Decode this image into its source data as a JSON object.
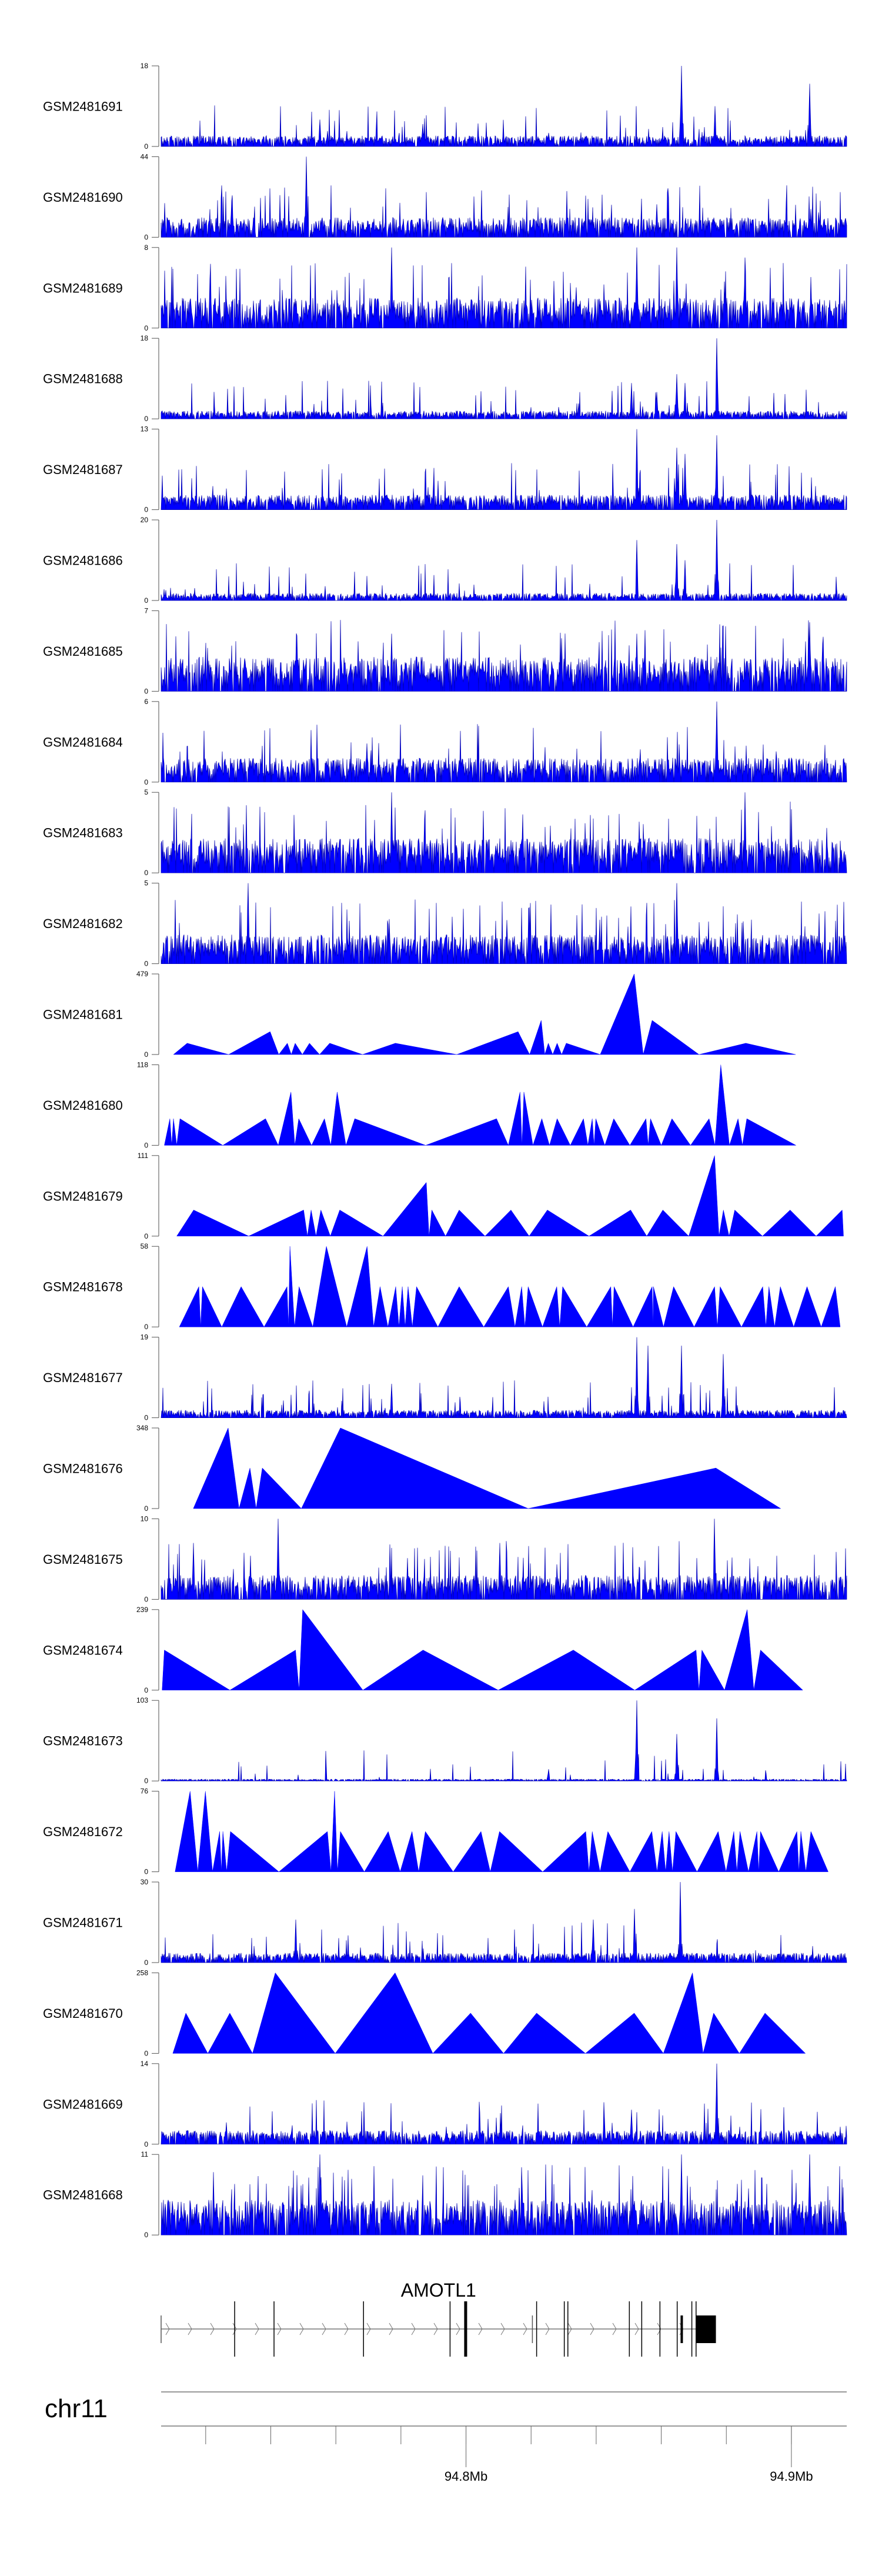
{
  "chart_data": {
    "type": "area",
    "title": "",
    "xlabel": "",
    "xunit": "Mb",
    "xlim": [
      94.7063,
      94.917
    ],
    "fill_color": "#0000ff",
    "stroke_color": "#0000b0",
    "tracks": [
      {
        "name": "GSM2481691",
        "ymax": 18,
        "style": "dense",
        "baseline": 2,
        "spikes": [
          [
            94.7551,
            6
          ],
          [
            94.7868,
            5
          ],
          [
            94.8663,
            18
          ],
          [
            94.8765,
            9
          ],
          [
            94.9057,
            14
          ]
        ]
      },
      {
        "name": "GSM2481690",
        "ymax": 44,
        "style": "dense",
        "baseline": 9,
        "spikes": [
          [
            94.728,
            20
          ],
          [
            94.751,
            44
          ],
          [
            94.8586,
            18
          ]
        ]
      },
      {
        "name": "GSM2481689",
        "ymax": 8,
        "style": "dense",
        "baseline": 2.5,
        "spikes": [
          [
            94.7771,
            8
          ],
          [
            94.8524,
            8
          ],
          [
            94.8647,
            8
          ],
          [
            94.8857,
            7
          ]
        ]
      },
      {
        "name": "GSM2481688",
        "ymax": 18,
        "style": "dense",
        "baseline": 1.5,
        "spikes": [
          [
            94.8509,
            8
          ],
          [
            94.8586,
            6
          ],
          [
            94.8647,
            10
          ],
          [
            94.8673,
            8
          ],
          [
            94.877,
            18
          ]
        ]
      },
      {
        "name": "GSM2481687",
        "ymax": 13,
        "style": "dense",
        "baseline": 2,
        "spikes": [
          [
            94.8524,
            13
          ],
          [
            94.8647,
            10
          ],
          [
            94.8673,
            9
          ],
          [
            94.877,
            12
          ]
        ]
      },
      {
        "name": "GSM2481686",
        "ymax": 20,
        "style": "dense",
        "baseline": 1.5,
        "spikes": [
          [
            94.8524,
            15
          ],
          [
            94.8647,
            14
          ],
          [
            94.8673,
            10
          ],
          [
            94.877,
            20
          ]
        ]
      },
      {
        "name": "GSM2481685",
        "ymax": 7,
        "style": "dense",
        "baseline": 2.5,
        "spikes": [
          [
            94.7771,
            5
          ],
          [
            94.8524,
            5
          ],
          [
            94.9057,
            6
          ]
        ]
      },
      {
        "name": "GSM2481684",
        "ymax": 6,
        "style": "dense",
        "baseline": 1.5,
        "spikes": [
          [
            94.877,
            6
          ]
        ]
      },
      {
        "name": "GSM2481683",
        "ymax": 5,
        "style": "dense",
        "baseline": 1.8,
        "spikes": [
          [
            94.7771,
            5
          ],
          [
            94.8857,
            5
          ]
        ]
      },
      {
        "name": "GSM2481682",
        "ymax": 5,
        "style": "dense",
        "baseline": 1.5,
        "spikes": [
          [
            94.7331,
            5
          ],
          [
            94.8647,
            5
          ]
        ]
      },
      {
        "name": "GSM2481681",
        "ymax": 479,
        "style": "triangles",
        "range": [
          94.7101,
          94.9013
        ],
        "peaks": [
          [
            94.7143,
            67
          ],
          [
            94.7398,
            136
          ],
          [
            94.7451,
            67
          ],
          [
            94.7475,
            67
          ],
          [
            94.7519,
            67
          ],
          [
            94.7581,
            67
          ],
          [
            94.7783,
            67
          ],
          [
            94.816,
            136
          ],
          [
            94.8231,
            203
          ],
          [
            94.8253,
            67
          ],
          [
            94.828,
            67
          ],
          [
            94.8308,
            67
          ],
          [
            94.8517,
            479
          ],
          [
            94.8572,
            203
          ],
          [
            94.886,
            67
          ]
        ]
      },
      {
        "name": "GSM2481680",
        "ymax": 118,
        "style": "triangles",
        "range": [
          94.7073,
          94.9014
        ],
        "peaks": [
          [
            94.709,
            39
          ],
          [
            94.7101,
            39
          ],
          [
            94.7121,
            39
          ],
          [
            94.7384,
            39
          ],
          [
            94.7462,
            78
          ],
          [
            94.7486,
            39
          ],
          [
            94.7565,
            39
          ],
          [
            94.7604,
            78
          ],
          [
            94.7658,
            39
          ],
          [
            94.8094,
            39
          ],
          [
            94.8166,
            78
          ],
          [
            94.8178,
            78
          ],
          [
            94.8233,
            39
          ],
          [
            94.828,
            39
          ],
          [
            94.8361,
            39
          ],
          [
            94.8388,
            39
          ],
          [
            94.8399,
            39
          ],
          [
            94.8454,
            39
          ],
          [
            94.8553,
            39
          ],
          [
            94.8567,
            39
          ],
          [
            94.8633,
            39
          ],
          [
            94.8747,
            39
          ],
          [
            94.8783,
            118
          ],
          [
            94.8836,
            39
          ],
          [
            94.8863,
            39
          ]
        ]
      },
      {
        "name": "GSM2481679",
        "ymax": 111,
        "style": "triangles",
        "range": [
          94.7111,
          94.916
        ],
        "peaks": [
          [
            94.7163,
            36
          ],
          [
            94.7501,
            36
          ],
          [
            94.7524,
            36
          ],
          [
            94.7554,
            36
          ],
          [
            94.7612,
            36
          ],
          [
            94.7878,
            74
          ],
          [
            94.7895,
            36
          ],
          [
            94.7979,
            36
          ],
          [
            94.8138,
            36
          ],
          [
            94.825,
            36
          ],
          [
            94.8506,
            36
          ],
          [
            94.8605,
            36
          ],
          [
            94.8764,
            111
          ],
          [
            94.8791,
            36
          ],
          [
            94.8826,
            36
          ],
          [
            94.8996,
            36
          ],
          [
            94.9156,
            36
          ]
        ]
      },
      {
        "name": "GSM2481678",
        "ymax": 58,
        "style": "triangles",
        "range": [
          94.7119,
          94.915
        ],
        "peaks": [
          [
            94.7179,
            29
          ],
          [
            94.719,
            29
          ],
          [
            94.7309,
            29
          ],
          [
            94.745,
            29
          ],
          [
            94.7459,
            58
          ],
          [
            94.7487,
            29
          ],
          [
            94.7571,
            58
          ],
          [
            94.7696,
            58
          ],
          [
            94.7736,
            29
          ],
          [
            94.7784,
            29
          ],
          [
            94.7804,
            29
          ],
          [
            94.7822,
            29
          ],
          [
            94.7848,
            29
          ],
          [
            94.7979,
            29
          ],
          [
            94.813,
            29
          ],
          [
            94.8171,
            29
          ],
          [
            94.8191,
            29
          ],
          [
            94.8279,
            29
          ],
          [
            94.8297,
            29
          ],
          [
            94.8445,
            29
          ],
          [
            94.8455,
            29
          ],
          [
            94.8572,
            29
          ],
          [
            94.8576,
            29
          ],
          [
            94.8638,
            29
          ],
          [
            94.8764,
            29
          ],
          [
            94.8781,
            29
          ],
          [
            94.8912,
            29
          ],
          [
            94.8931,
            29
          ],
          [
            94.8966,
            29
          ],
          [
            94.9048,
            29
          ],
          [
            94.9135,
            29
          ]
        ]
      },
      {
        "name": "GSM2481677",
        "ymax": 19,
        "style": "dense",
        "baseline": 1.5,
        "spikes": [
          [
            94.8524,
            19
          ],
          [
            94.856,
            17
          ],
          [
            94.8663,
            17
          ],
          [
            94.8791,
            15
          ],
          [
            94.7771,
            8
          ]
        ]
      },
      {
        "name": "GSM2481676",
        "ymax": 348,
        "style": "triangles",
        "range": [
          94.7162,
          94.8967
        ],
        "peaks": [
          [
            94.7269,
            348
          ],
          [
            94.7336,
            175
          ],
          [
            94.7374,
            175
          ],
          [
            94.7614,
            348
          ],
          [
            94.8768,
            175
          ]
        ]
      },
      {
        "name": "GSM2481675",
        "ymax": 10,
        "style": "dense",
        "baseline": 2.5,
        "spikes": [
          [
            94.7422,
            10
          ],
          [
            94.8764,
            10
          ],
          [
            94.7162,
            7
          ],
          [
            94.8103,
            7
          ]
        ]
      },
      {
        "name": "GSM2481674",
        "ymax": 239,
        "style": "triangles",
        "range": [
          94.7066,
          94.9035
        ],
        "peaks": [
          [
            94.7073,
            119
          ],
          [
            94.7476,
            119
          ],
          [
            94.7498,
            239
          ],
          [
            94.7868,
            119
          ],
          [
            94.833,
            119
          ],
          [
            94.8707,
            119
          ],
          [
            94.8725,
            119
          ],
          [
            94.8864,
            239
          ],
          [
            94.8905,
            119
          ]
        ]
      },
      {
        "name": "GSM2481673",
        "ymax": 103,
        "style": "dense",
        "baseline": 2,
        "spikes": [
          [
            94.8253,
            15
          ],
          [
            94.8524,
            103
          ],
          [
            94.8647,
            60
          ],
          [
            94.877,
            80
          ]
        ]
      },
      {
        "name": "GSM2481672",
        "ymax": 76,
        "style": "triangles",
        "range": [
          94.7106,
          94.9113
        ],
        "peaks": [
          [
            94.7152,
            76
          ],
          [
            94.7199,
            76
          ],
          [
            94.7243,
            38
          ],
          [
            94.7253,
            38
          ],
          [
            94.7276,
            38
          ],
          [
            94.7574,
            38
          ],
          [
            94.7596,
            76
          ],
          [
            94.7614,
            38
          ],
          [
            94.7761,
            38
          ],
          [
            94.7834,
            38
          ],
          [
            94.7875,
            38
          ],
          [
            94.8046,
            38
          ],
          [
            94.8103,
            38
          ],
          [
            94.8368,
            38
          ],
          [
            94.8388,
            38
          ],
          [
            94.8436,
            38
          ],
          [
            94.8571,
            38
          ],
          [
            94.8603,
            38
          ],
          [
            94.8624,
            38
          ],
          [
            94.8645,
            38
          ],
          [
            94.8775,
            38
          ],
          [
            94.8823,
            38
          ],
          [
            94.8842,
            38
          ],
          [
            94.8894,
            38
          ],
          [
            94.8905,
            38
          ],
          [
            94.9017,
            38
          ],
          [
            94.9029,
            38
          ],
          [
            94.906,
            38
          ]
        ]
      },
      {
        "name": "GSM2481671",
        "ymax": 30,
        "style": "dense",
        "baseline": 3,
        "spikes": [
          [
            94.7477,
            16
          ],
          [
            94.8392,
            16
          ],
          [
            94.8517,
            20
          ],
          [
            94.8659,
            30
          ]
        ]
      },
      {
        "name": "GSM2481670",
        "ymax": 258,
        "style": "triangles",
        "range": [
          94.7099,
          94.9043
        ],
        "peaks": [
          [
            94.7139,
            129
          ],
          [
            94.7274,
            129
          ],
          [
            94.7414,
            258
          ],
          [
            94.7782,
            258
          ],
          [
            94.8014,
            129
          ],
          [
            94.8217,
            129
          ],
          [
            94.8517,
            129
          ],
          [
            94.8696,
            258
          ],
          [
            94.8761,
            129
          ],
          [
            94.8919,
            129
          ]
        ]
      },
      {
        "name": "GSM2481669",
        "ymax": 14,
        "style": "dense",
        "baseline": 2,
        "spikes": [
          [
            94.877,
            14
          ],
          [
            94.8509,
            6
          ]
        ]
      },
      {
        "name": "GSM2481668",
        "ymax": 11,
        "style": "dense",
        "baseline": 4,
        "spikes": [
          [
            94.7551,
            11
          ],
          [
            94.8663,
            11
          ],
          [
            94.9057,
            11
          ]
        ]
      }
    ],
    "gene": {
      "name": "AMOTL1",
      "strand": "+",
      "start": 94.7063,
      "end": 94.8768,
      "exons_tall": [
        94.7289,
        94.741,
        94.7685,
        94.7951,
        94.8217,
        94.8302,
        94.8313,
        94.8502,
        94.854,
        94.8596,
        94.8649,
        94.8694,
        94.8707
      ],
      "exons_thick": [
        94.7998
      ],
      "exons_short": [
        94.7063,
        94.8204
      ],
      "exons_thick_short": [
        94.8663
      ],
      "utr_block": [
        94.8707,
        94.8768
      ]
    },
    "axis": {
      "chromosome": "chr11",
      "minor_ticks": [
        94.72,
        94.74,
        94.76,
        94.78,
        94.8,
        94.82,
        94.84,
        94.86,
        94.88,
        94.9
      ],
      "major_ticks": [
        {
          "value": 94.8,
          "label": "94.8Mb"
        },
        {
          "value": 94.9,
          "label": "94.9Mb"
        }
      ]
    }
  }
}
